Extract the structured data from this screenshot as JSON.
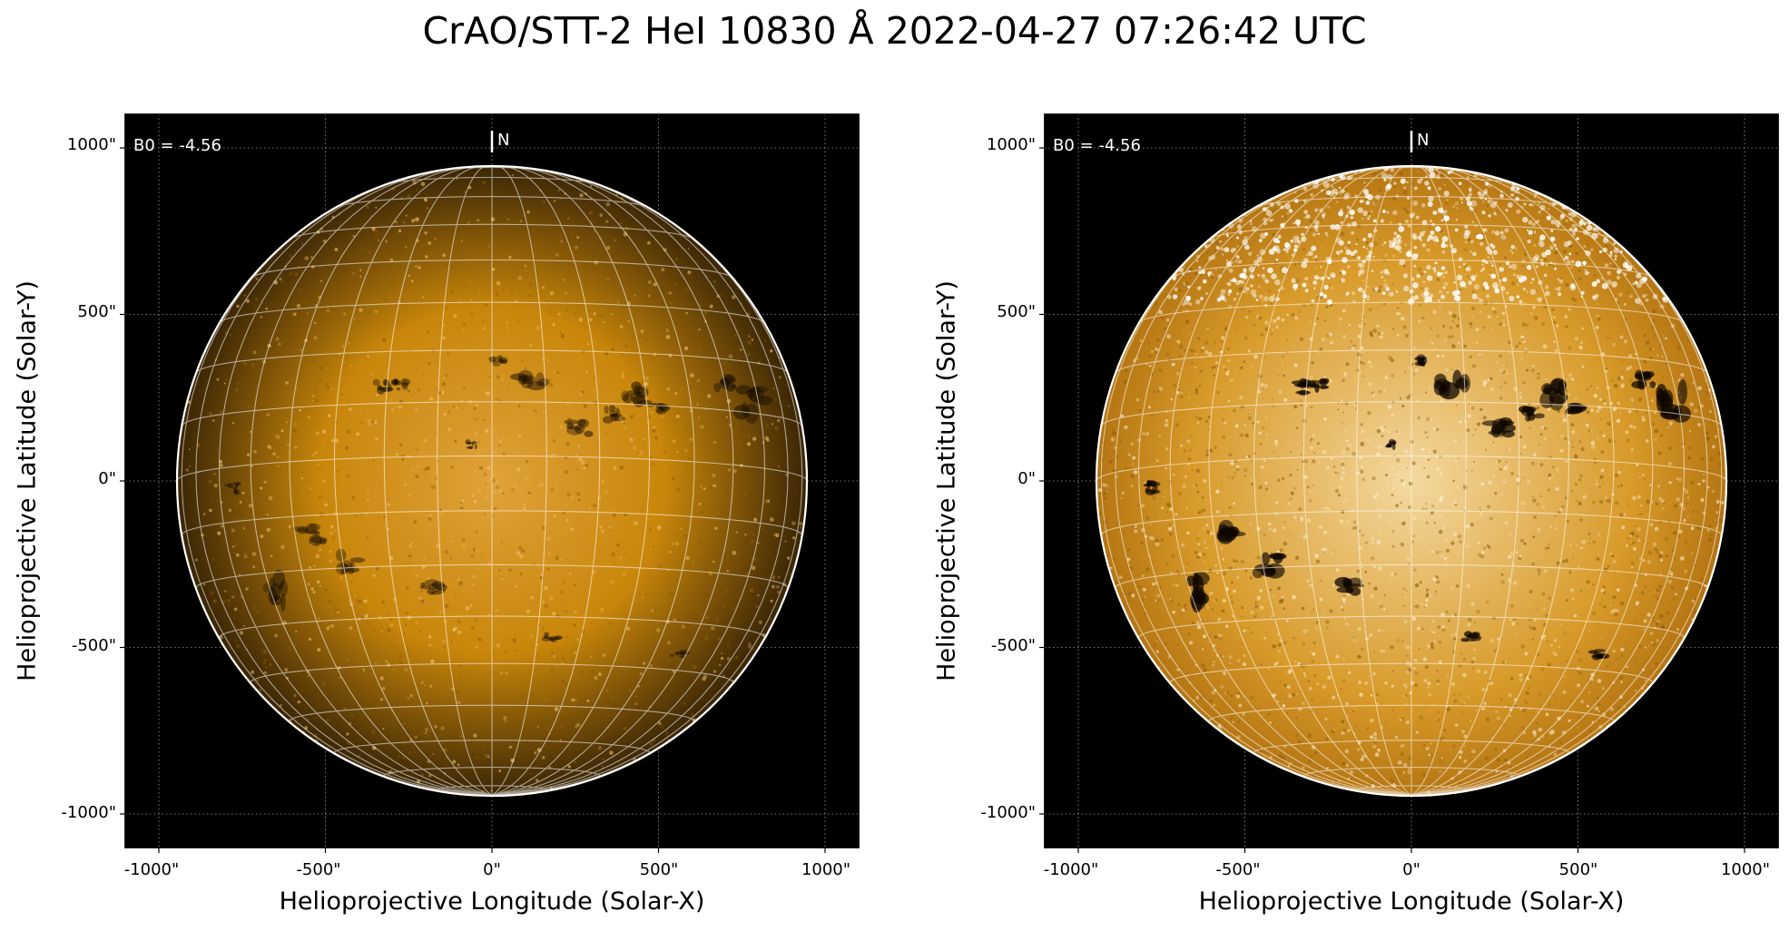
{
  "title": "CrAO/STT-2 HeI 10830 Å 2022-04-27 07:26:42 UTC",
  "panels": [
    {
      "b0_label": "B0 = -4.56",
      "north_label": "N",
      "xlabel": "Helioprojective Longitude (Solar-X)",
      "ylabel": "Helioprojective Latitude (Solar-Y)",
      "xticks": [
        "-1000\"",
        "-500\"",
        "0\"",
        "500\"",
        "1000\""
      ],
      "yticks": [
        "1000\"",
        "500\"",
        "0\"",
        "-500\"",
        "-1000\""
      ],
      "disk_color": "#c8860a",
      "disk_center_color": "#e0a23a",
      "limb_color": "#3a2505",
      "feature_color": "#1a0f02"
    },
    {
      "b0_label": "B0 = -4.56",
      "north_label": "N",
      "xlabel": "Helioprojective Longitude (Solar-X)",
      "ylabel": "Helioprojective Latitude (Solar-Y)",
      "xticks": [
        "-1000\"",
        "-500\"",
        "0\"",
        "500\"",
        "1000\""
      ],
      "yticks": [
        "1000\"",
        "500\"",
        "0\"",
        "-500\"",
        "-1000\""
      ],
      "disk_color": "#d89a2a",
      "disk_center_color": "#f4d9a0",
      "limb_color": "#b57512",
      "feature_color": "#0d0600"
    }
  ]
}
